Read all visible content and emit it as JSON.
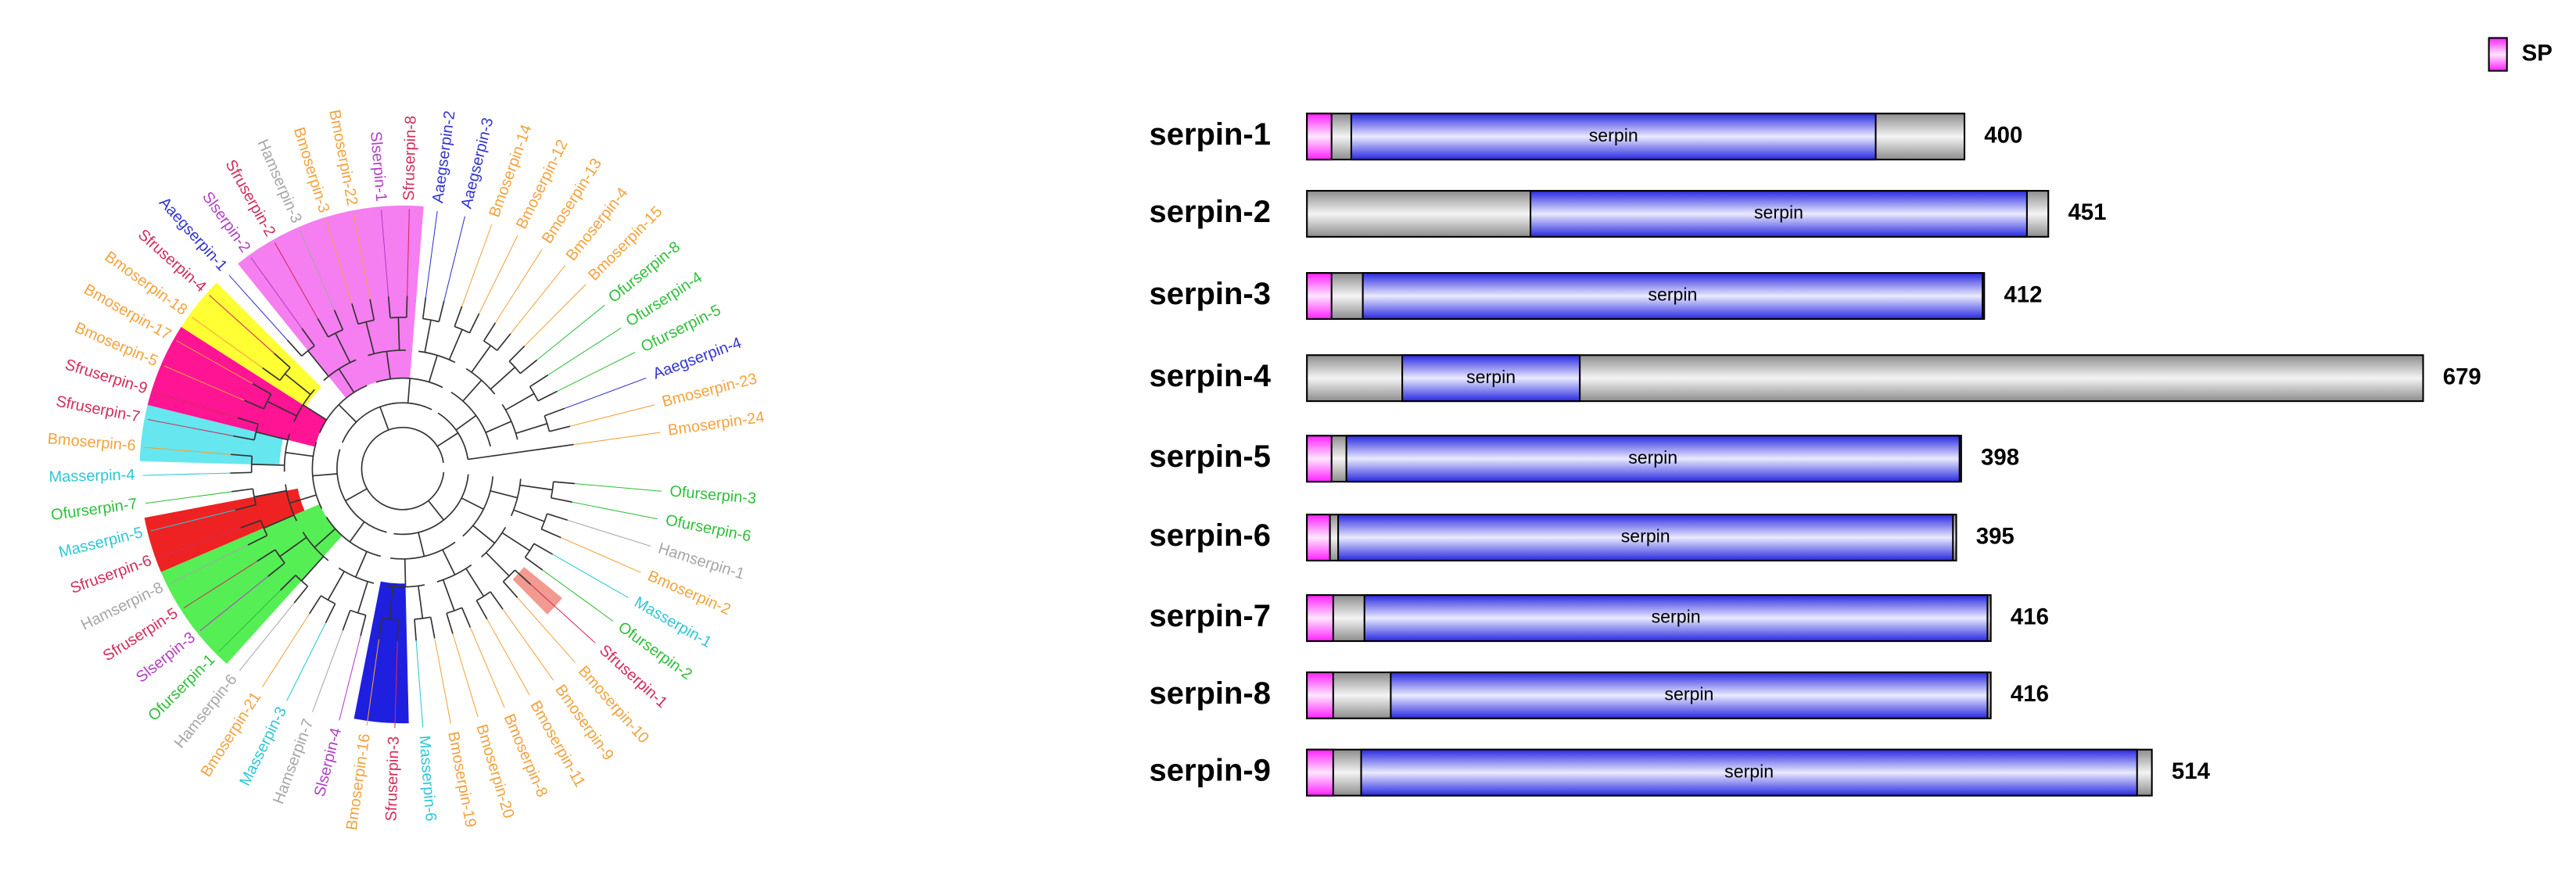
{
  "tree": {
    "leaves": [
      {
        "label": "Ofurserpin-3",
        "color": "#2fbf3a"
      },
      {
        "label": "Ofurserpin-6",
        "color": "#2fbf3a"
      },
      {
        "label": "Hamserpin-1",
        "color": "#a6a6a6"
      },
      {
        "label": "Bmoserpin-2",
        "color": "#f4a23c"
      },
      {
        "label": "Masserpin-1",
        "color": "#2ec6d6"
      },
      {
        "label": "Ofurserpin-2",
        "color": "#2fbf3a"
      },
      {
        "label": "Sfruserpin-1",
        "color": "#d12d5a"
      },
      {
        "label": "Bmoserpin-10",
        "color": "#f4a23c"
      },
      {
        "label": "Bmoserpin-9",
        "color": "#f4a23c"
      },
      {
        "label": "Bmoserpin-11",
        "color": "#f4a23c"
      },
      {
        "label": "Bmoserpin-8",
        "color": "#f4a23c"
      },
      {
        "label": "Bmoserpin-20",
        "color": "#f4a23c"
      },
      {
        "label": "Bmoserpin-19",
        "color": "#f4a23c"
      },
      {
        "label": "Masserpin-6",
        "color": "#2ec6d6"
      },
      {
        "label": "Sfruserpin-3",
        "color": "#d12d5a"
      },
      {
        "label": "Bmoserpin-16",
        "color": "#f4a23c"
      },
      {
        "label": "Slserpin-4",
        "color": "#b23fc4"
      },
      {
        "label": "Hamserpin-7",
        "color": "#a6a6a6"
      },
      {
        "label": "Masserpin-3",
        "color": "#2ec6d6"
      },
      {
        "label": "Bmoserpin-21",
        "color": "#f4a23c"
      },
      {
        "label": "Hamserpin-6",
        "color": "#a6a6a6"
      },
      {
        "label": "Ofurserpin-1",
        "color": "#2fbf3a"
      },
      {
        "label": "Slserpin-3",
        "color": "#b23fc4"
      },
      {
        "label": "Sfruserpin-5",
        "color": "#d12d5a"
      },
      {
        "label": "Hamserpin-8",
        "color": "#a6a6a6"
      },
      {
        "label": "Sfruserpin-6",
        "color": "#d12d5a"
      },
      {
        "label": "Masserpin-5",
        "color": "#2ec6d6"
      },
      {
        "label": "Ofurserpin-7",
        "color": "#2fbf3a"
      },
      {
        "label": "Masserpin-4",
        "color": "#2ec6d6"
      },
      {
        "label": "Bmoserpin-6",
        "color": "#f4a23c"
      },
      {
        "label": "Sfruserpin-7",
        "color": "#d12d5a"
      },
      {
        "label": "Sfruserpin-9",
        "color": "#d12d5a"
      },
      {
        "label": "Bmoserpin-5",
        "color": "#f4a23c"
      },
      {
        "label": "Bmoserpin-17",
        "color": "#f4a23c"
      },
      {
        "label": "Bmoserpin-18",
        "color": "#f4a23c"
      },
      {
        "label": "Sfruserpin-4",
        "color": "#d12d5a"
      },
      {
        "label": "Aaegserpin-1",
        "color": "#3434d0"
      },
      {
        "label": "Slserpin-2",
        "color": "#b23fc4"
      },
      {
        "label": "Sfruserpin-2",
        "color": "#d12d5a"
      },
      {
        "label": "Hamserpin-3",
        "color": "#a6a6a6"
      },
      {
        "label": "Bmoserpin-3",
        "color": "#f4a23c"
      },
      {
        "label": "Bmoserpin-22",
        "color": "#f4a23c"
      },
      {
        "label": "Slserpin-1",
        "color": "#b23fc4"
      },
      {
        "label": "Sfruserpin-8",
        "color": "#d12d5a"
      },
      {
        "label": "Aaegserpin-2",
        "color": "#3434d0"
      },
      {
        "label": "Aaegserpin-3",
        "color": "#3434d0"
      },
      {
        "label": "Bmoserpin-14",
        "color": "#f4a23c"
      },
      {
        "label": "Bmoserpin-12",
        "color": "#f4a23c"
      },
      {
        "label": "Bmoserpin-13",
        "color": "#f4a23c"
      },
      {
        "label": "Bmoserpin-4",
        "color": "#f4a23c"
      },
      {
        "label": "Bmoserpin-15",
        "color": "#f4a23c"
      },
      {
        "label": "Ofurserpin-8",
        "color": "#2fbf3a"
      },
      {
        "label": "Ofurserpin-4",
        "color": "#2fbf3a"
      },
      {
        "label": "Ofurserpin-5",
        "color": "#2fbf3a"
      },
      {
        "label": "Aaegserpin-4",
        "color": "#3434d0"
      },
      {
        "label": "Bmoserpin-23",
        "color": "#f4a23c"
      },
      {
        "label": "Bmoserpin-24",
        "color": "#f4a23c"
      }
    ]
  },
  "legend": {
    "label": "SP",
    "color": "#ff3cff"
  },
  "proteins": [
    {
      "name": "serpin-1",
      "length": 400,
      "signal_peptide": [
        0,
        15
      ],
      "serpin_domain": {
        "label": "serpin",
        "start": 27,
        "end": 346
      }
    },
    {
      "name": "serpin-2",
      "length": 451,
      "serpin_domain": {
        "label": "serpin",
        "start": 136,
        "end": 438
      }
    },
    {
      "name": "serpin-3",
      "length": 412,
      "signal_peptide": [
        0,
        15
      ],
      "serpin_domain": {
        "label": "serpin",
        "start": 34,
        "end": 411
      }
    },
    {
      "name": "serpin-4",
      "length": 679,
      "serpin_domain": {
        "label": "serpin",
        "start": 58,
        "end": 166
      }
    },
    {
      "name": "serpin-5",
      "length": 398,
      "signal_peptide": [
        0,
        15
      ],
      "serpin_domain": {
        "label": "serpin",
        "start": 24,
        "end": 397
      }
    },
    {
      "name": "serpin-6",
      "length": 395,
      "signal_peptide": [
        0,
        14
      ],
      "serpin_domain": {
        "label": "serpin",
        "start": 19,
        "end": 393
      }
    },
    {
      "name": "serpin-7",
      "length": 416,
      "signal_peptide": [
        0,
        16
      ],
      "serpin_domain": {
        "label": "serpin",
        "start": 35,
        "end": 414
      }
    },
    {
      "name": "serpin-8",
      "length": 416,
      "signal_peptide": [
        0,
        16
      ],
      "serpin_domain": {
        "label": "serpin",
        "start": 51,
        "end": 414
      }
    },
    {
      "name": "serpin-9",
      "length": 514,
      "signal_peptide": [
        0,
        16
      ],
      "serpin_domain": {
        "label": "serpin",
        "start": 33,
        "end": 505
      }
    }
  ]
}
